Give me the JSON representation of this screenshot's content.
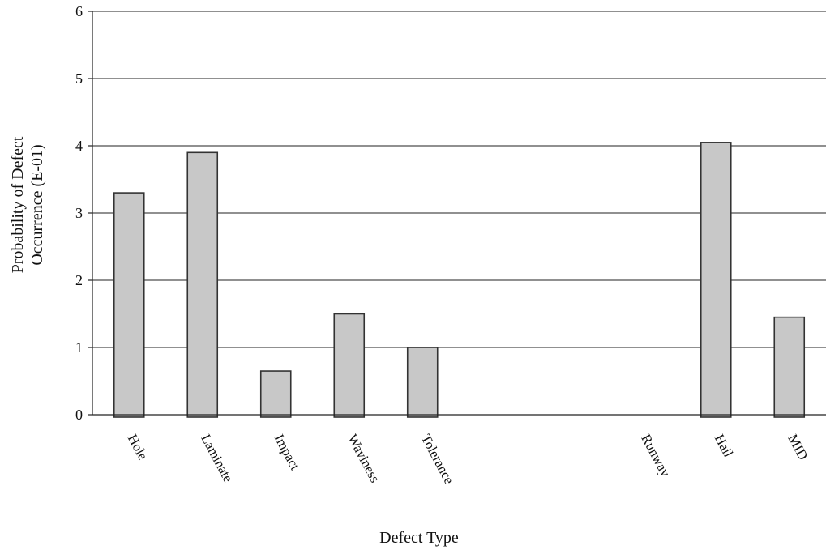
{
  "chart_data": {
    "type": "bar",
    "title": "",
    "xlabel": "Defect Type",
    "ylabel_lines": [
      "Probability of Defect",
      "Occurrence (E-01)"
    ],
    "categories": [
      "Hole",
      "Laminate",
      "Impact",
      "Waviness",
      "Tolerance",
      "",
      "",
      "Runway",
      "Hail",
      "MID"
    ],
    "values": [
      3.3,
      3.9,
      0.65,
      1.5,
      1.0,
      null,
      null,
      0,
      4.05,
      1.45
    ],
    "ylim": [
      0,
      6
    ],
    "yticks": [
      0,
      1,
      2,
      3,
      4,
      5,
      6
    ],
    "grid": true,
    "legend": "none",
    "bar_color": "#c8c8c8"
  }
}
